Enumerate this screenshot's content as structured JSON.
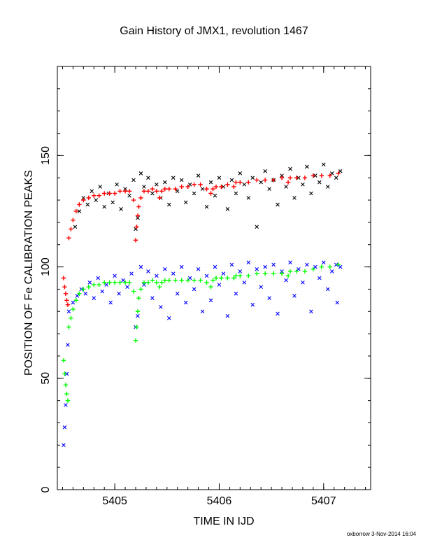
{
  "chart_data": {
    "type": "scatter",
    "title": "Gain History of JMX1, revolution 1467",
    "xlabel": "TIME IN IJD",
    "ylabel": "POSITION OF Fe CALIBRATION PEAKS",
    "xlim": [
      5404.45,
      5407.45
    ],
    "ylim": [
      0,
      190
    ],
    "x_ticks": [
      5405,
      5406,
      5407
    ],
    "y_ticks": [
      0,
      50,
      100,
      150
    ],
    "grid": false,
    "series": [
      {
        "color": "#000000",
        "marker": "x",
        "x": [
          5404.62,
          5404.66,
          5404.7,
          5404.74,
          5404.78,
          5404.82,
          5404.86,
          5404.9,
          5404.94,
          5404.98,
          5405.02,
          5405.06,
          5405.1,
          5405.14,
          5405.18,
          5405.2,
          5405.22,
          5405.25,
          5405.28,
          5405.32,
          5405.36,
          5405.4,
          5405.44,
          5405.48,
          5405.52,
          5405.56,
          5405.6,
          5405.64,
          5405.68,
          5405.72,
          5405.76,
          5405.8,
          5405.84,
          5405.88,
          5405.92,
          5405.96,
          5406.0,
          5406.04,
          5406.08,
          5406.12,
          5406.16,
          5406.2,
          5406.24,
          5406.28,
          5406.32,
          5406.36,
          5406.4,
          5406.44,
          5406.48,
          5406.52,
          5406.56,
          5406.6,
          5406.64,
          5406.68,
          5406.72,
          5406.76,
          5406.8,
          5406.84,
          5406.88,
          5406.92,
          5406.96,
          5407.0,
          5407.04,
          5407.08,
          5407.12,
          5407.16
        ],
        "y": [
          118,
          125,
          131,
          128,
          134,
          130,
          136,
          127,
          133,
          129,
          137,
          126,
          135,
          132,
          139,
          117,
          122,
          142,
          136,
          140,
          133,
          137,
          131,
          138,
          128,
          140,
          134,
          139,
          129,
          137,
          133,
          141,
          135,
          127,
          138,
          132,
          140,
          136,
          126,
          139,
          133,
          142,
          137,
          131,
          140,
          118,
          138,
          143,
          135,
          139,
          128,
          141,
          136,
          144,
          131,
          140,
          137,
          145,
          133,
          141,
          138,
          146,
          136,
          142,
          140,
          143
        ]
      },
      {
        "color": "#ff0000",
        "marker": "+",
        "x": [
          5404.51,
          5404.52,
          5404.53,
          5404.54,
          5404.55,
          5404.56,
          5404.58,
          5404.6,
          5404.63,
          5404.66,
          5404.7,
          5404.75,
          5404.8,
          5404.85,
          5404.9,
          5404.95,
          5405.0,
          5405.05,
          5405.1,
          5405.14,
          5405.18,
          5405.2,
          5405.21,
          5405.22,
          5405.23,
          5405.25,
          5405.28,
          5405.32,
          5405.36,
          5405.4,
          5405.43,
          5405.45,
          5405.48,
          5405.52,
          5405.58,
          5405.64,
          5405.7,
          5405.76,
          5405.82,
          5405.88,
          5405.92,
          5405.94,
          5405.97,
          5406.02,
          5406.08,
          5406.14,
          5406.16,
          5406.2,
          5406.28,
          5406.36,
          5406.44,
          5406.52,
          5406.6,
          5406.66,
          5406.68,
          5406.74,
          5406.82,
          5406.9,
          5406.98,
          5407.06,
          5407.14
        ],
        "y": [
          95,
          91,
          88,
          85,
          83,
          113,
          117,
          121,
          125,
          128,
          130,
          131,
          132,
          132,
          133,
          133,
          133,
          134,
          134,
          134,
          130,
          112,
          118,
          123,
          127,
          131,
          134,
          134,
          135,
          134,
          131,
          134,
          135,
          135,
          135,
          136,
          136,
          137,
          137,
          135,
          133,
          135,
          136,
          136,
          137,
          136,
          138,
          138,
          138,
          139,
          139,
          139,
          140,
          138,
          140,
          140,
          140,
          141,
          141,
          141,
          142
        ]
      },
      {
        "color": "#0000ff",
        "marker": "x",
        "x": [
          5404.51,
          5404.52,
          5404.53,
          5404.54,
          5404.55,
          5404.56,
          5404.6,
          5404.64,
          5404.68,
          5404.72,
          5404.76,
          5404.8,
          5404.84,
          5404.88,
          5404.92,
          5404.96,
          5405.0,
          5405.04,
          5405.08,
          5405.12,
          5405.16,
          5405.2,
          5405.22,
          5405.25,
          5405.28,
          5405.32,
          5405.36,
          5405.4,
          5405.44,
          5405.48,
          5405.52,
          5405.56,
          5405.6,
          5405.64,
          5405.68,
          5405.72,
          5405.76,
          5405.8,
          5405.84,
          5405.88,
          5405.92,
          5405.96,
          5406.0,
          5406.04,
          5406.08,
          5406.12,
          5406.16,
          5406.2,
          5406.24,
          5406.28,
          5406.32,
          5406.36,
          5406.4,
          5406.44,
          5406.48,
          5406.52,
          5406.56,
          5406.6,
          5406.64,
          5406.68,
          5406.72,
          5406.76,
          5406.8,
          5406.84,
          5406.88,
          5406.92,
          5406.96,
          5407.0,
          5407.04,
          5407.08,
          5407.12,
          5407.16,
          5407.13
        ],
        "y": [
          20,
          28,
          38,
          52,
          65,
          80,
          84,
          87,
          90,
          88,
          93,
          86,
          95,
          89,
          92,
          84,
          96,
          88,
          94,
          91,
          97,
          73,
          78,
          100,
          92,
          98,
          86,
          96,
          82,
          99,
          77,
          97,
          88,
          100,
          84,
          95,
          90,
          99,
          80,
          96,
          85,
          100,
          92,
          97,
          78,
          101,
          88,
          98,
          93,
          102,
          83,
          99,
          91,
          100,
          86,
          101,
          79,
          98,
          94,
          102,
          87,
          99,
          93,
          101,
          80,
          100,
          95,
          102,
          90,
          98,
          101,
          100,
          84
        ]
      },
      {
        "color": "#00ff00",
        "marker": "+",
        "x": [
          5404.51,
          5404.52,
          5404.53,
          5404.54,
          5404.55,
          5404.56,
          5404.58,
          5404.6,
          5404.63,
          5404.66,
          5404.7,
          5404.75,
          5404.8,
          5404.85,
          5404.9,
          5404.95,
          5405.0,
          5405.05,
          5405.1,
          5405.14,
          5405.18,
          5405.2,
          5405.21,
          5405.22,
          5405.23,
          5405.25,
          5405.28,
          5405.32,
          5405.36,
          5405.4,
          5405.43,
          5405.45,
          5405.48,
          5405.52,
          5405.58,
          5405.64,
          5405.7,
          5405.76,
          5405.82,
          5405.88,
          5405.92,
          5405.94,
          5405.97,
          5406.02,
          5406.08,
          5406.14,
          5406.16,
          5406.2,
          5406.28,
          5406.36,
          5406.44,
          5406.52,
          5406.6,
          5406.66,
          5406.68,
          5406.74,
          5406.82,
          5406.9,
          5406.98,
          5407.06,
          5407.14
        ],
        "y": [
          58,
          52,
          47,
          43,
          40,
          73,
          77,
          81,
          85,
          88,
          90,
          91,
          92,
          92,
          93,
          93,
          93,
          93,
          93,
          93,
          89,
          67,
          73,
          80,
          86,
          90,
          93,
          93,
          94,
          93,
          91,
          93,
          94,
          94,
          94,
          94,
          94,
          94,
          94,
          93,
          91,
          94,
          95,
          95,
          95,
          95,
          96,
          96,
          96,
          97,
          97,
          97,
          97,
          96,
          98,
          98,
          98,
          99,
          100,
          100,
          101
        ]
      }
    ]
  },
  "footer": {
    "stamp": "oxborrow  3-Nov-2014 16:04"
  }
}
